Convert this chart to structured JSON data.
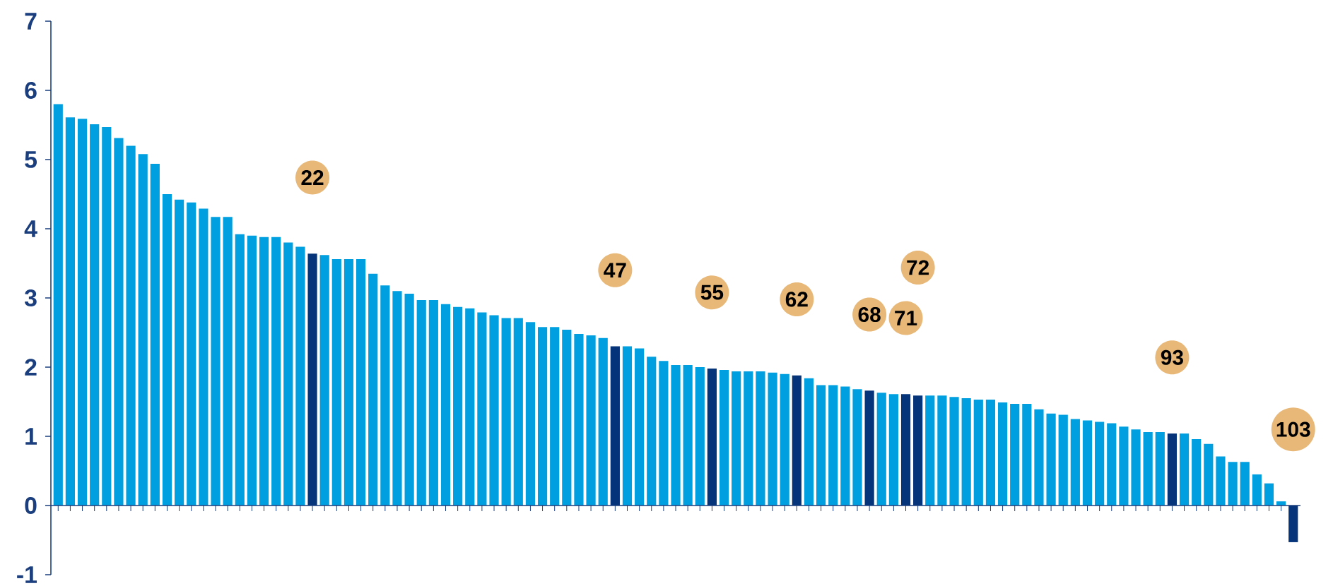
{
  "chart_data": {
    "type": "bar",
    "categories": [
      null,
      null,
      null,
      null,
      null,
      null,
      null,
      null,
      null,
      null,
      null,
      null,
      null,
      null,
      null,
      null,
      null,
      null,
      null,
      null,
      null,
      "22",
      null,
      null,
      null,
      null,
      null,
      null,
      null,
      null,
      null,
      null,
      null,
      null,
      null,
      null,
      null,
      null,
      null,
      null,
      null,
      null,
      null,
      null,
      null,
      null,
      "47",
      null,
      null,
      null,
      null,
      null,
      null,
      null,
      "55",
      null,
      null,
      null,
      null,
      null,
      null,
      "62",
      null,
      null,
      null,
      null,
      null,
      "68",
      null,
      null,
      "71",
      "72",
      null,
      null,
      null,
      null,
      null,
      null,
      null,
      null,
      null,
      null,
      null,
      null,
      null,
      null,
      null,
      null,
      null,
      null,
      null,
      null,
      "93",
      null,
      null,
      null,
      null,
      null,
      null,
      null,
      null,
      null,
      "103"
    ],
    "values": [
      5.8,
      5.61,
      5.59,
      5.51,
      5.47,
      5.31,
      5.2,
      5.08,
      4.94,
      4.5,
      4.42,
      4.38,
      4.29,
      4.17,
      4.17,
      3.92,
      3.9,
      3.88,
      3.88,
      3.8,
      3.74,
      3.64,
      3.62,
      3.56,
      3.56,
      3.56,
      3.35,
      3.18,
      3.1,
      3.06,
      2.97,
      2.97,
      2.91,
      2.87,
      2.85,
      2.79,
      2.75,
      2.71,
      2.71,
      2.65,
      2.58,
      2.58,
      2.54,
      2.48,
      2.46,
      2.42,
      2.3,
      2.3,
      2.27,
      2.15,
      2.09,
      2.03,
      2.03,
      2.0,
      1.98,
      1.96,
      1.94,
      1.94,
      1.94,
      1.92,
      1.9,
      1.88,
      1.84,
      1.74,
      1.74,
      1.72,
      1.68,
      1.66,
      1.63,
      1.61,
      1.61,
      1.59,
      1.59,
      1.59,
      1.57,
      1.55,
      1.53,
      1.53,
      1.49,
      1.47,
      1.47,
      1.39,
      1.33,
      1.31,
      1.25,
      1.23,
      1.21,
      1.19,
      1.14,
      1.1,
      1.06,
      1.06,
      1.04,
      1.04,
      0.96,
      0.89,
      0.71,
      0.63,
      0.63,
      0.45,
      0.32,
      0.06,
      -0.53
    ],
    "colors": [
      "#00a0e0",
      "#00a0e0",
      "#00a0e0",
      "#00a0e0",
      "#00a0e0",
      "#00a0e0",
      "#00a0e0",
      "#00a0e0",
      "#00a0e0",
      "#00a0e0",
      "#00a0e0",
      "#00a0e0",
      "#00a0e0",
      "#00a0e0",
      "#00a0e0",
      "#00a0e0",
      "#00a0e0",
      "#00a0e0",
      "#00a0e0",
      "#00a0e0",
      "#00a0e0",
      "#06347a",
      "#00a0e0",
      "#00a0e0",
      "#00a0e0",
      "#00a0e0",
      "#00a0e0",
      "#00a0e0",
      "#00a0e0",
      "#00a0e0",
      "#00a0e0",
      "#00a0e0",
      "#00a0e0",
      "#00a0e0",
      "#00a0e0",
      "#00a0e0",
      "#00a0e0",
      "#00a0e0",
      "#00a0e0",
      "#00a0e0",
      "#00a0e0",
      "#00a0e0",
      "#00a0e0",
      "#00a0e0",
      "#00a0e0",
      "#00a0e0",
      "#06347a",
      "#00a0e0",
      "#00a0e0",
      "#00a0e0",
      "#00a0e0",
      "#00a0e0",
      "#00a0e0",
      "#00a0e0",
      "#06347a",
      "#00a0e0",
      "#00a0e0",
      "#00a0e0",
      "#00a0e0",
      "#00a0e0",
      "#00a0e0",
      "#06347a",
      "#00a0e0",
      "#00a0e0",
      "#00a0e0",
      "#00a0e0",
      "#00a0e0",
      "#06347a",
      "#00a0e0",
      "#00a0e0",
      "#06347a",
      "#06347a",
      "#00a0e0",
      "#00a0e0",
      "#00a0e0",
      "#00a0e0",
      "#00a0e0",
      "#00a0e0",
      "#00a0e0",
      "#00a0e0",
      "#00a0e0",
      "#00a0e0",
      "#00a0e0",
      "#00a0e0",
      "#00a0e0",
      "#00a0e0",
      "#00a0e0",
      "#00a0e0",
      "#00a0e0",
      "#00a0e0",
      "#00a0e0",
      "#00a0e0",
      "#06347a",
      "#00a0e0",
      "#00a0e0",
      "#00a0e0",
      "#00a0e0",
      "#00a0e0",
      "#00a0e0",
      "#00a0e0",
      "#00a0e0",
      "#00a0e0",
      "#06347a"
    ],
    "ref_lines": [
      {
        "axis": "y",
        "value": 0,
        "color": "#1b3f7e"
      }
    ],
    "ylim": [
      -1,
      7
    ],
    "yticks": [
      -1,
      0,
      1,
      2,
      3,
      4,
      5,
      6,
      7
    ],
    "grid": false
  }
}
